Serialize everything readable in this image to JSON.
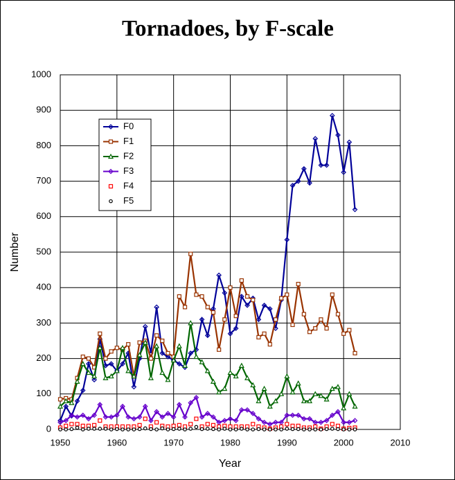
{
  "chart_data": {
    "type": "line",
    "title": "Tornadoes, by F-scale",
    "x_label": "Year",
    "y_label": "Number",
    "x": [
      1950,
      1951,
      1952,
      1953,
      1954,
      1955,
      1956,
      1957,
      1958,
      1959,
      1960,
      1961,
      1962,
      1963,
      1964,
      1965,
      1966,
      1967,
      1968,
      1969,
      1970,
      1971,
      1972,
      1973,
      1974,
      1975,
      1976,
      1977,
      1978,
      1979,
      1980,
      1981,
      1982,
      1983,
      1984,
      1985,
      1986,
      1987,
      1988,
      1989,
      1990,
      1991,
      1992,
      1993,
      1994,
      1995,
      1996,
      1997,
      1998,
      1999,
      2000,
      2001,
      2002
    ],
    "series": [
      {
        "name": "F0",
        "color": "#000099",
        "marker": "diamond",
        "values": [
          25,
          65,
          38,
          80,
          110,
          185,
          140,
          255,
          180,
          185,
          165,
          185,
          215,
          120,
          200,
          290,
          215,
          345,
          215,
          205,
          195,
          185,
          175,
          215,
          225,
          310,
          265,
          340,
          435,
          385,
          270,
          285,
          375,
          350,
          370,
          310,
          350,
          340,
          285,
          365,
          535,
          688,
          700,
          735,
          695,
          820,
          745,
          745,
          885,
          830,
          725,
          810,
          620
        ]
      },
      {
        "name": "F1",
        "color": "#993300",
        "marker": "square",
        "values": [
          85,
          88,
          85,
          145,
          205,
          200,
          175,
          270,
          200,
          220,
          230,
          225,
          240,
          150,
          245,
          250,
          200,
          265,
          250,
          215,
          205,
          375,
          345,
          495,
          380,
          375,
          345,
          330,
          225,
          310,
          400,
          320,
          420,
          375,
          365,
          260,
          270,
          240,
          310,
          370,
          380,
          295,
          410,
          325,
          275,
          285,
          310,
          285,
          380,
          325,
          270,
          280,
          215
        ]
      },
      {
        "name": "F2",
        "color": "#006600",
        "marker": "triangle",
        "values": [
          65,
          80,
          75,
          135,
          185,
          160,
          150,
          230,
          145,
          150,
          165,
          230,
          165,
          150,
          210,
          245,
          145,
          235,
          160,
          140,
          195,
          235,
          180,
          300,
          205,
          190,
          165,
          135,
          105,
          115,
          160,
          150,
          180,
          145,
          125,
          80,
          115,
          65,
          80,
          100,
          150,
          105,
          130,
          80,
          80,
          100,
          95,
          85,
          115,
          120,
          60,
          100,
          65
        ]
      },
      {
        "name": "F3",
        "color": "#6600cc",
        "marker": "diamond",
        "values": [
          20,
          25,
          40,
          35,
          40,
          30,
          40,
          70,
          35,
          35,
          40,
          65,
          35,
          30,
          35,
          65,
          25,
          50,
          35,
          45,
          35,
          70,
          35,
          75,
          90,
          35,
          45,
          35,
          20,
          25,
          30,
          25,
          55,
          55,
          45,
          30,
          20,
          15,
          20,
          20,
          40,
          40,
          40,
          30,
          30,
          20,
          20,
          25,
          40,
          50,
          20,
          20,
          25
        ]
      },
      {
        "name": "F4",
        "color": "#ff0000",
        "marker": "square",
        "line": false,
        "values": [
          5,
          10,
          15,
          15,
          10,
          10,
          12,
          25,
          8,
          8,
          8,
          8,
          8,
          8,
          12,
          30,
          8,
          20,
          10,
          8,
          10,
          12,
          8,
          15,
          30,
          8,
          15,
          12,
          8,
          10,
          8,
          8,
          8,
          8,
          15,
          8,
          5,
          2,
          5,
          8,
          15,
          10,
          10,
          5,
          5,
          8,
          2,
          8,
          15,
          10,
          2,
          4,
          5
        ]
      },
      {
        "name": "F5",
        "color": "#000000",
        "marker": "circle",
        "line": false,
        "values": [
          0,
          0,
          1,
          5,
          0,
          2,
          2,
          2,
          2,
          0,
          1,
          0,
          0,
          0,
          1,
          3,
          1,
          0,
          3,
          0,
          1,
          2,
          0,
          2,
          7,
          1,
          2,
          1,
          0,
          2,
          0,
          0,
          2,
          0,
          0,
          1,
          0,
          0,
          0,
          0,
          2,
          1,
          1,
          0,
          0,
          0,
          0,
          1,
          2,
          1,
          0,
          0,
          0
        ]
      }
    ],
    "xlim": [
      1950,
      2010
    ],
    "xticks": [
      1950,
      1960,
      1970,
      1980,
      1990,
      2000,
      2010
    ],
    "ylim": [
      0,
      1000
    ],
    "yticks": [
      0,
      100,
      200,
      300,
      400,
      500,
      600,
      700,
      800,
      900,
      1000
    ],
    "grid": true,
    "legend": "upper left"
  }
}
